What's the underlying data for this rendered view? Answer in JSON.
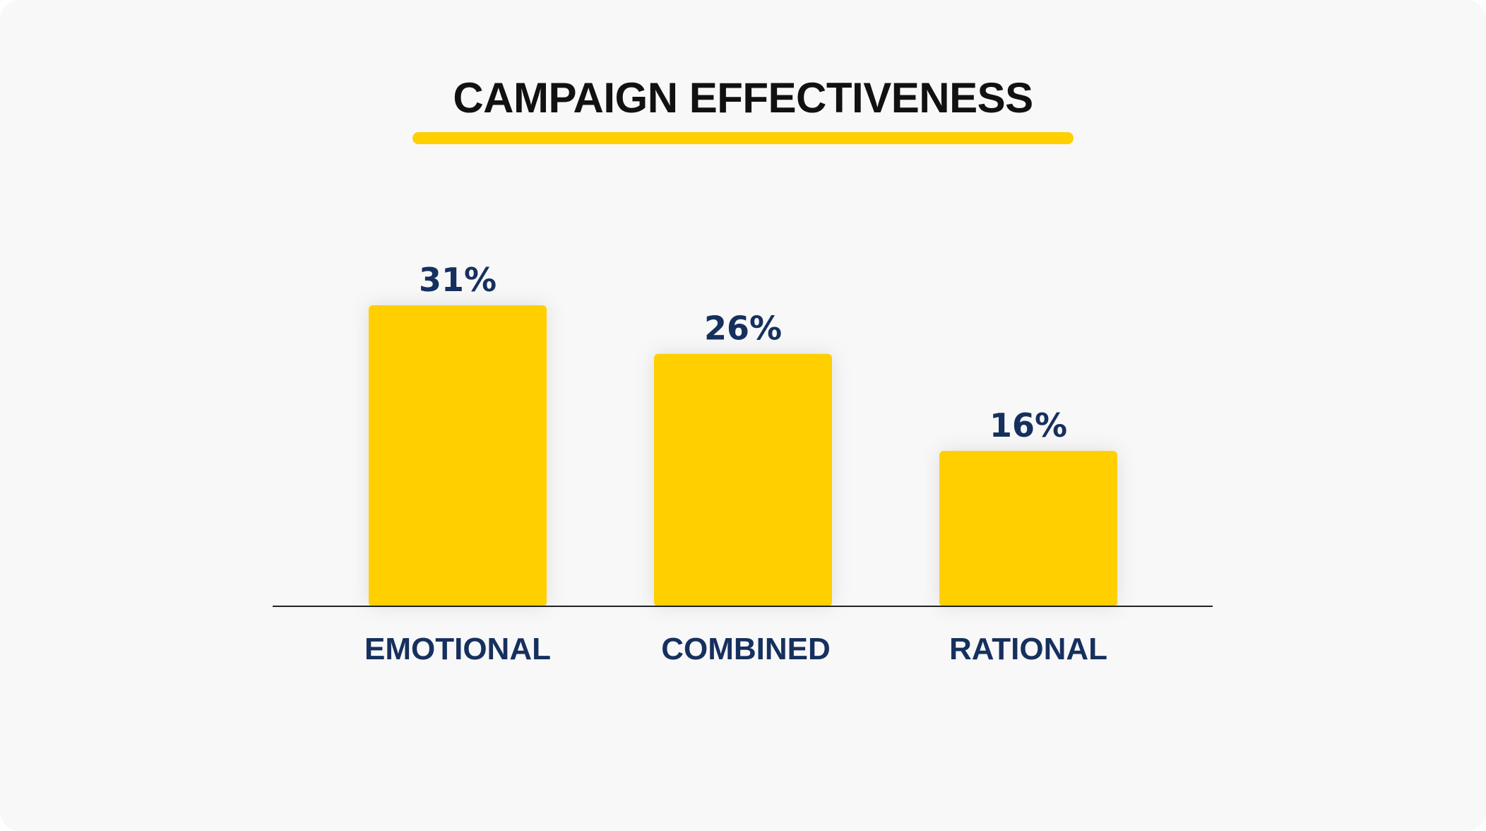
{
  "colors": {
    "bar": "#FFCF00",
    "underline": "#FFCF00",
    "label": "#16305E",
    "title": "#111111",
    "axis": "#222222"
  },
  "chart_data": {
    "type": "bar",
    "title": "CAMPAIGN EFFECTIVENESS",
    "categories": [
      "EMOTIONAL",
      "COMBINED",
      "RATIONAL"
    ],
    "values": [
      31,
      26,
      16
    ],
    "value_labels": [
      "31%",
      "26%",
      "16%"
    ],
    "xlabel": "",
    "ylabel": "",
    "ylim": [
      0,
      31
    ],
    "grid": false,
    "legend": "none"
  }
}
